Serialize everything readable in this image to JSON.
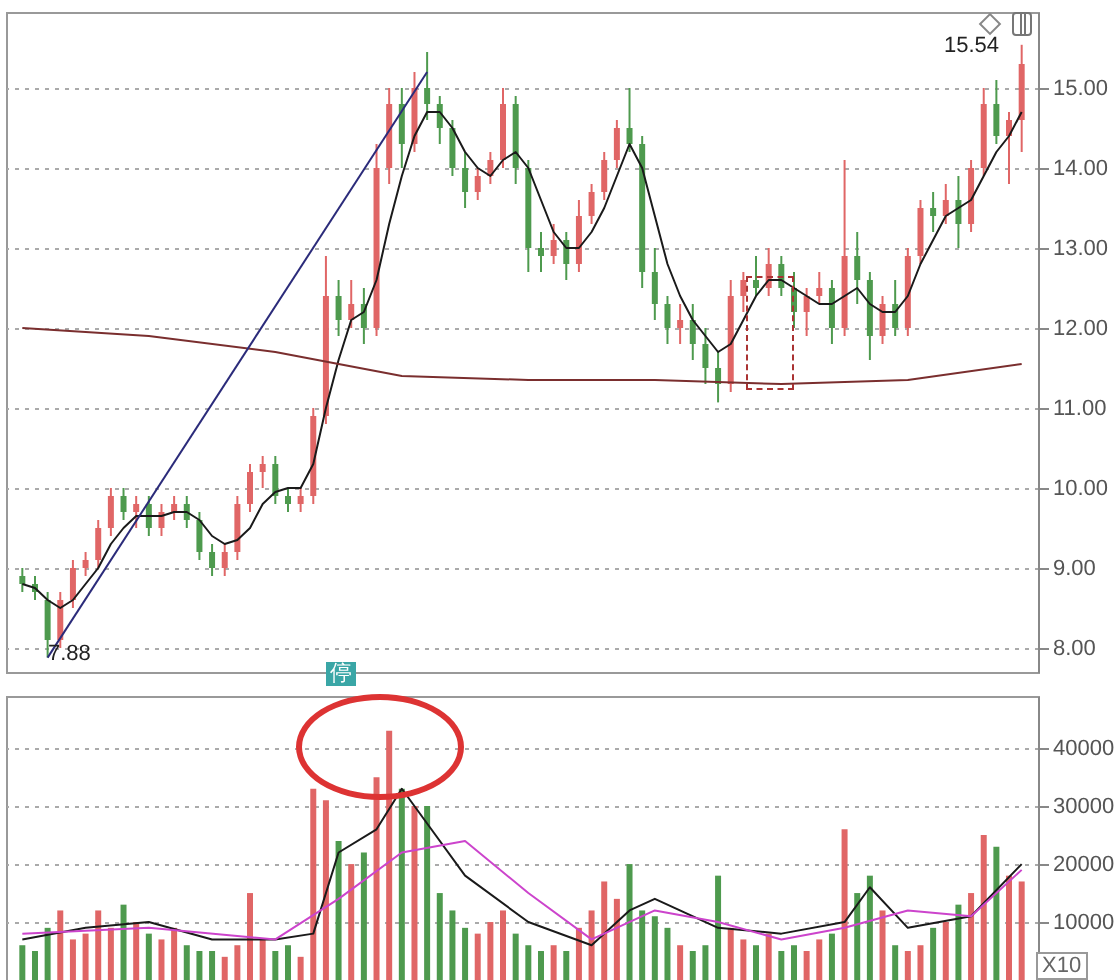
{
  "chart_data": [
    {
      "type": "candlestick",
      "categories": [
        null,
        null,
        null,
        null,
        null,
        null,
        null,
        null,
        null,
        null,
        null,
        null,
        null,
        null,
        null,
        null,
        null,
        null,
        null,
        null,
        null,
        null,
        null,
        null,
        null,
        null,
        null,
        null,
        null,
        null,
        null,
        null,
        null,
        null,
        null,
        null,
        null,
        null,
        null,
        null,
        null,
        null,
        null,
        null,
        null,
        null,
        null,
        null,
        null,
        null,
        null,
        null,
        null,
        null,
        null,
        null,
        null,
        null,
        null,
        null,
        null,
        null,
        null,
        null,
        null,
        null,
        null,
        null,
        null,
        null,
        null,
        null,
        null,
        null,
        null,
        null,
        null,
        null,
        null,
        null
      ],
      "ohlc": [
        [
          8.9,
          9.0,
          8.7,
          8.8
        ],
        [
          8.8,
          8.9,
          8.6,
          8.7
        ],
        [
          8.6,
          8.7,
          7.88,
          8.1
        ],
        [
          8.1,
          8.7,
          8.0,
          8.6
        ],
        [
          8.6,
          9.1,
          8.5,
          9.0
        ],
        [
          9.0,
          9.2,
          8.9,
          9.1
        ],
        [
          9.1,
          9.6,
          9.0,
          9.5
        ],
        [
          9.5,
          10.0,
          9.4,
          9.9
        ],
        [
          9.9,
          10.0,
          9.6,
          9.7
        ],
        [
          9.7,
          9.9,
          9.5,
          9.8
        ],
        [
          9.8,
          9.9,
          9.4,
          9.5
        ],
        [
          9.5,
          9.8,
          9.4,
          9.7
        ],
        [
          9.7,
          9.9,
          9.6,
          9.8
        ],
        [
          9.8,
          9.9,
          9.5,
          9.6
        ],
        [
          9.6,
          9.7,
          9.1,
          9.2
        ],
        [
          9.2,
          9.3,
          8.9,
          9.0
        ],
        [
          9.0,
          9.3,
          8.9,
          9.2
        ],
        [
          9.2,
          9.9,
          9.1,
          9.8
        ],
        [
          9.8,
          10.3,
          9.7,
          10.2
        ],
        [
          10.2,
          10.4,
          10.0,
          10.3
        ],
        [
          10.3,
          10.4,
          9.8,
          9.9
        ],
        [
          9.9,
          10.0,
          9.7,
          9.8
        ],
        [
          9.8,
          10.0,
          9.7,
          9.9
        ],
        [
          9.9,
          11.0,
          9.8,
          10.9
        ],
        [
          10.9,
          12.9,
          10.8,
          12.4
        ],
        [
          12.4,
          12.6,
          11.9,
          12.1
        ],
        [
          12.1,
          12.6,
          12.0,
          12.3
        ],
        [
          12.3,
          12.5,
          11.8,
          12.0
        ],
        [
          12.0,
          14.3,
          11.9,
          14.0
        ],
        [
          14.0,
          15.0,
          13.8,
          14.8
        ],
        [
          14.8,
          15.0,
          14.0,
          14.3
        ],
        [
          14.3,
          15.2,
          14.2,
          15.0
        ],
        [
          15.0,
          15.45,
          14.6,
          14.8
        ],
        [
          14.8,
          14.9,
          14.3,
          14.5
        ],
        [
          14.5,
          14.6,
          13.9,
          14.0
        ],
        [
          14.0,
          14.2,
          13.5,
          13.7
        ],
        [
          13.7,
          14.0,
          13.6,
          13.9
        ],
        [
          13.9,
          14.2,
          13.8,
          14.1
        ],
        [
          14.1,
          15.0,
          14.0,
          14.8
        ],
        [
          14.8,
          14.9,
          13.8,
          14.0
        ],
        [
          14.0,
          14.1,
          12.7,
          13.0
        ],
        [
          13.0,
          13.2,
          12.7,
          12.9
        ],
        [
          12.9,
          13.3,
          12.8,
          13.1
        ],
        [
          13.1,
          13.2,
          12.6,
          12.8
        ],
        [
          12.8,
          13.6,
          12.7,
          13.4
        ],
        [
          13.4,
          13.8,
          13.3,
          13.7
        ],
        [
          13.7,
          14.2,
          13.6,
          14.1
        ],
        [
          14.1,
          14.6,
          14.0,
          14.5
        ],
        [
          14.5,
          15.0,
          14.2,
          14.3
        ],
        [
          14.3,
          14.4,
          12.5,
          12.7
        ],
        [
          12.7,
          13.0,
          12.1,
          12.3
        ],
        [
          12.3,
          12.4,
          11.8,
          12.0
        ],
        [
          12.0,
          12.3,
          11.8,
          12.1
        ],
        [
          12.1,
          12.3,
          11.6,
          11.8
        ],
        [
          11.8,
          12.0,
          11.3,
          11.5
        ],
        [
          11.5,
          11.7,
          11.07,
          11.3
        ],
        [
          11.3,
          12.6,
          11.2,
          12.4
        ],
        [
          12.4,
          12.7,
          12.2,
          12.6
        ],
        [
          12.6,
          12.9,
          12.4,
          12.5
        ],
        [
          12.5,
          13.0,
          12.4,
          12.8
        ],
        [
          12.8,
          12.9,
          12.4,
          12.5
        ],
        [
          12.5,
          12.7,
          12.0,
          12.2
        ],
        [
          12.2,
          12.5,
          11.9,
          12.4
        ],
        [
          12.4,
          12.7,
          12.3,
          12.5
        ],
        [
          12.5,
          12.6,
          11.8,
          12.0
        ],
        [
          12.0,
          14.1,
          11.9,
          12.9
        ],
        [
          12.9,
          13.2,
          12.3,
          12.6
        ],
        [
          12.6,
          12.7,
          11.6,
          11.9
        ],
        [
          11.9,
          12.4,
          11.8,
          12.3
        ],
        [
          12.3,
          12.6,
          11.9,
          12.0
        ],
        [
          12.0,
          13.0,
          11.9,
          12.9
        ],
        [
          12.9,
          13.6,
          12.8,
          13.5
        ],
        [
          13.5,
          13.7,
          13.2,
          13.4
        ],
        [
          13.4,
          13.8,
          13.3,
          13.6
        ],
        [
          13.6,
          13.9,
          13.0,
          13.3
        ],
        [
          13.3,
          14.1,
          13.2,
          14.0
        ],
        [
          14.0,
          15.0,
          13.9,
          14.8
        ],
        [
          14.8,
          15.1,
          14.3,
          14.4
        ],
        [
          14.4,
          14.7,
          13.8,
          14.6
        ],
        [
          14.6,
          15.54,
          14.2,
          15.3
        ]
      ],
      "colors": [
        "#4e9a4e",
        "#4e9a4e",
        "#4e9a4e",
        "#e06666",
        "#e06666",
        "#e06666",
        "#e06666",
        "#e06666",
        "#4e9a4e",
        "#e06666",
        "#4e9a4e",
        "#e06666",
        "#e06666",
        "#4e9a4e",
        "#4e9a4e",
        "#4e9a4e",
        "#e06666",
        "#e06666",
        "#e06666",
        "#e06666",
        "#4e9a4e",
        "#4e9a4e",
        "#e06666",
        "#e06666",
        "#e06666",
        "#4e9a4e",
        "#e06666",
        "#4e9a4e",
        "#e06666",
        "#e06666",
        "#4e9a4e",
        "#e06666",
        "#4e9a4e",
        "#4e9a4e",
        "#4e9a4e",
        "#4e9a4e",
        "#e06666",
        "#e06666",
        "#e06666",
        "#4e9a4e",
        "#4e9a4e",
        "#4e9a4e",
        "#e06666",
        "#4e9a4e",
        "#e06666",
        "#e06666",
        "#e06666",
        "#e06666",
        "#4e9a4e",
        "#4e9a4e",
        "#4e9a4e",
        "#4e9a4e",
        "#e06666",
        "#4e9a4e",
        "#4e9a4e",
        "#4e9a4e",
        "#e06666",
        "#e06666",
        "#4e9a4e",
        "#e06666",
        "#4e9a4e",
        "#4e9a4e",
        "#e06666",
        "#e06666",
        "#4e9a4e",
        "#e06666",
        "#4e9a4e",
        "#4e9a4e",
        "#e06666",
        "#4e9a4e",
        "#e06666",
        "#e06666",
        "#4e9a4e",
        "#e06666",
        "#4e9a4e",
        "#e06666",
        "#e06666",
        "#4e9a4e",
        "#e06666",
        "#e06666"
      ],
      "series": [
        {
          "type": "line",
          "color": "#1a1a1a",
          "values": [
            8.8,
            8.75,
            8.6,
            8.5,
            8.6,
            8.8,
            9.0,
            9.3,
            9.5,
            9.65,
            9.65,
            9.65,
            9.7,
            9.7,
            9.6,
            9.4,
            9.3,
            9.35,
            9.5,
            9.8,
            9.95,
            10.0,
            10.0,
            10.3,
            11.0,
            11.6,
            12.1,
            12.2,
            12.6,
            13.3,
            13.9,
            14.4,
            14.7,
            14.7,
            14.5,
            14.2,
            14.0,
            13.9,
            14.1,
            14.2,
            14.0,
            13.6,
            13.2,
            13.0,
            13.0,
            13.2,
            13.5,
            13.9,
            14.3,
            14.0,
            13.4,
            12.8,
            12.4,
            12.1,
            11.9,
            11.7,
            11.8,
            12.1,
            12.4,
            12.6,
            12.6,
            12.5,
            12.4,
            12.3,
            12.3,
            12.4,
            12.5,
            12.3,
            12.2,
            12.2,
            12.4,
            12.8,
            13.1,
            13.4,
            13.5,
            13.6,
            13.9,
            14.2,
            14.4,
            14.7
          ]
        },
        {
          "type": "line",
          "color": "#7a2e2e",
          "values": [
            12.0,
            null,
            null,
            null,
            null,
            null,
            null,
            null,
            null,
            null,
            11.9,
            null,
            null,
            null,
            null,
            null,
            null,
            null,
            null,
            null,
            11.7,
            null,
            null,
            null,
            null,
            null,
            null,
            null,
            null,
            null,
            11.4,
            null,
            null,
            null,
            null,
            null,
            null,
            null,
            null,
            null,
            11.35,
            null,
            null,
            null,
            null,
            null,
            null,
            null,
            null,
            null,
            11.35,
            null,
            null,
            null,
            null,
            null,
            null,
            null,
            null,
            null,
            11.3,
            null,
            null,
            null,
            null,
            null,
            null,
            null,
            null,
            null,
            11.35,
            null,
            null,
            null,
            null,
            null,
            null,
            null,
            null,
            11.55
          ]
        },
        {
          "type": "line",
          "color": "#2b2b7a",
          "values": [
            null,
            null,
            7.88,
            null,
            null,
            null,
            null,
            null,
            null,
            null,
            null,
            null,
            null,
            null,
            null,
            null,
            null,
            null,
            null,
            null,
            null,
            null,
            null,
            null,
            null,
            null,
            null,
            null,
            null,
            null,
            null,
            null,
            15.2,
            null,
            null,
            null,
            null,
            null,
            null,
            null,
            null,
            null,
            null,
            null,
            null,
            null,
            null,
            null,
            null,
            null,
            null,
            null,
            null,
            null,
            null,
            null,
            null,
            null,
            null,
            null,
            null,
            null,
            null,
            null,
            null,
            null,
            null,
            null,
            null,
            null,
            null,
            null,
            null,
            null,
            null,
            null,
            null,
            null,
            null,
            null
          ]
        }
      ],
      "ylim": [
        7.7,
        15.95
      ],
      "yticks": [
        {
          "value": 8,
          "label": "8.00"
        },
        {
          "value": 9,
          "label": "9.00"
        },
        {
          "value": 10,
          "label": "10.00"
        },
        {
          "value": 11,
          "label": "11.00"
        },
        {
          "value": 12,
          "label": "12.00"
        },
        {
          "value": 13,
          "label": "13.00"
        },
        {
          "value": 14,
          "label": "14.00"
        },
        {
          "value": 15,
          "label": "15.00"
        }
      ],
      "grid": "y",
      "tick_labels": "y",
      "annotations": [
        "7.88",
        "15.54",
        "停"
      ]
    },
    {
      "type": "bar",
      "categories": [
        null,
        null,
        null,
        null,
        null,
        null,
        null,
        null,
        null,
        null,
        null,
        null,
        null,
        null,
        null,
        null,
        null,
        null,
        null,
        null,
        null,
        null,
        null,
        null,
        null,
        null,
        null,
        null,
        null,
        null,
        null,
        null,
        null,
        null,
        null,
        null,
        null,
        null,
        null,
        null,
        null,
        null,
        null,
        null,
        null,
        null,
        null,
        null,
        null,
        null,
        null,
        null,
        null,
        null,
        null,
        null,
        null,
        null,
        null,
        null,
        null,
        null,
        null,
        null,
        null,
        null,
        null,
        null,
        null,
        null,
        null,
        null,
        null,
        null,
        null,
        null,
        null,
        null,
        null,
        null
      ],
      "values": [
        6000,
        5000,
        9000,
        12000,
        7000,
        8000,
        12000,
        9000,
        13000,
        10000,
        8000,
        7000,
        9000,
        6000,
        5000,
        5000,
        4000,
        6000,
        15000,
        7000,
        5000,
        6000,
        4000,
        33000,
        31000,
        24000,
        20000,
        22000,
        35000,
        43000,
        33000,
        30000,
        30000,
        15000,
        12000,
        9000,
        8000,
        10000,
        12000,
        8000,
        6000,
        5000,
        6000,
        5000,
        9000,
        12000,
        17000,
        14000,
        20000,
        12000,
        11000,
        9000,
        6000,
        5000,
        6000,
        18000,
        9000,
        7000,
        6000,
        8000,
        5000,
        6000,
        5000,
        7000,
        8000,
        26000,
        15000,
        18000,
        12000,
        6000,
        5000,
        6000,
        9000,
        10000,
        13000,
        15000,
        25000,
        23000,
        18000,
        17000
      ],
      "colors": [
        "#4e9a4e",
        "#4e9a4e",
        "#4e9a4e",
        "#e06666",
        "#e06666",
        "#e06666",
        "#e06666",
        "#e06666",
        "#4e9a4e",
        "#e06666",
        "#4e9a4e",
        "#e06666",
        "#e06666",
        "#4e9a4e",
        "#4e9a4e",
        "#4e9a4e",
        "#e06666",
        "#e06666",
        "#e06666",
        "#e06666",
        "#4e9a4e",
        "#4e9a4e",
        "#e06666",
        "#e06666",
        "#e06666",
        "#4e9a4e",
        "#e06666",
        "#4e9a4e",
        "#e06666",
        "#e06666",
        "#4e9a4e",
        "#e06666",
        "#4e9a4e",
        "#4e9a4e",
        "#4e9a4e",
        "#4e9a4e",
        "#e06666",
        "#e06666",
        "#e06666",
        "#4e9a4e",
        "#4e9a4e",
        "#4e9a4e",
        "#e06666",
        "#4e9a4e",
        "#e06666",
        "#e06666",
        "#e06666",
        "#e06666",
        "#4e9a4e",
        "#4e9a4e",
        "#4e9a4e",
        "#4e9a4e",
        "#e06666",
        "#4e9a4e",
        "#4e9a4e",
        "#4e9a4e",
        "#e06666",
        "#e06666",
        "#4e9a4e",
        "#e06666",
        "#4e9a4e",
        "#4e9a4e",
        "#e06666",
        "#e06666",
        "#4e9a4e",
        "#e06666",
        "#4e9a4e",
        "#4e9a4e",
        "#e06666",
        "#4e9a4e",
        "#e06666",
        "#e06666",
        "#4e9a4e",
        "#e06666",
        "#4e9a4e",
        "#e06666",
        "#e06666",
        "#4e9a4e",
        "#e06666",
        "#e06666"
      ],
      "series": [
        {
          "type": "line",
          "color": "#1a1a1a",
          "values": [
            7000,
            null,
            null,
            null,
            null,
            9000,
            null,
            null,
            null,
            null,
            10000,
            null,
            null,
            null,
            null,
            7000,
            null,
            null,
            null,
            null,
            7000,
            null,
            null,
            8000,
            null,
            22000,
            null,
            null,
            26000,
            null,
            33000,
            null,
            27000,
            null,
            null,
            18000,
            null,
            null,
            null,
            null,
            10000,
            null,
            null,
            null,
            null,
            6000,
            null,
            null,
            12000,
            null,
            14000,
            null,
            null,
            null,
            null,
            9000,
            null,
            null,
            null,
            null,
            8000,
            null,
            null,
            null,
            null,
            10000,
            null,
            16000,
            null,
            null,
            9000,
            null,
            null,
            null,
            null,
            11000,
            null,
            null,
            null,
            20000
          ]
        },
        {
          "type": "line",
          "color": "#cc44cc",
          "values": [
            8000,
            null,
            null,
            null,
            null,
            null,
            null,
            null,
            null,
            null,
            9000,
            null,
            null,
            null,
            null,
            null,
            null,
            null,
            null,
            null,
            7000,
            null,
            null,
            null,
            null,
            14000,
            null,
            null,
            null,
            null,
            22000,
            null,
            null,
            null,
            null,
            24000,
            null,
            null,
            null,
            null,
            15000,
            null,
            null,
            null,
            null,
            7000,
            null,
            null,
            null,
            null,
            12000,
            null,
            null,
            null,
            null,
            10000,
            null,
            null,
            null,
            null,
            7000,
            null,
            null,
            null,
            null,
            9000,
            null,
            null,
            null,
            null,
            12000,
            null,
            null,
            null,
            null,
            11000,
            null,
            null,
            null,
            19000
          ]
        }
      ],
      "ylim": [
        0,
        49000
      ],
      "yticks": [
        10000,
        20000,
        30000,
        40000
      ],
      "grid": "y",
      "tick_labels": "y",
      "annotations": [
        "X10"
      ]
    }
  ]
}
